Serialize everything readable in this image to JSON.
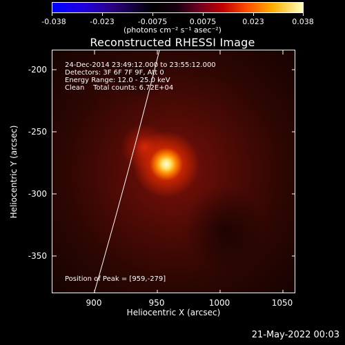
{
  "colorbar": {
    "ticks": [
      "-0.038",
      "-0.023",
      "-0.0075",
      "0.0075",
      "0.023",
      "0.038"
    ],
    "units": "(photons cm⁻² s⁻¹ asec⁻²)"
  },
  "title": "Reconstructed RHESSI Image",
  "annotations": {
    "line1": "24-Dec-2014 23:49:12.000 to 23:55:12.000",
    "line2": "Detectors: 3F 6F 7F 9F, Att 0",
    "line3": "Energy Range: 12.0 - 25.0 keV",
    "line4": "Clean    Total counts: 6.72E+04",
    "peak": "Position of Peak = [959,-279]"
  },
  "axes": {
    "x_title": "Heliocentric X (arcsec)",
    "y_title": "Heliocentric Y (arcsec)",
    "x_ticks": [
      "900",
      "950",
      "1000",
      "1050"
    ],
    "y_ticks": [
      "-200",
      "-250",
      "-300",
      "-350"
    ]
  },
  "footer": "21-May-2022 00:03",
  "colors": {
    "background": "#000000",
    "peak": "#ffffe0",
    "limb": "#ffffff"
  }
}
